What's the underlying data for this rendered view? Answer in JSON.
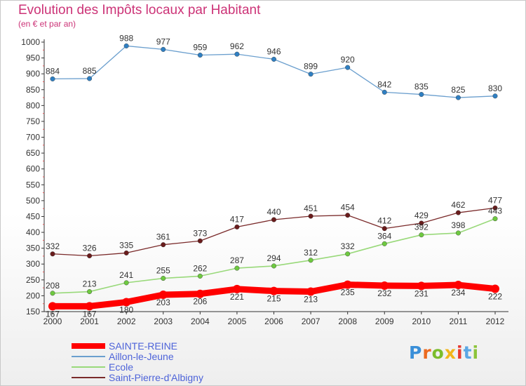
{
  "title": "Evolution des Impôts locaux par Habitant",
  "subtitle": "(en € et par an)",
  "logo": {
    "letters": [
      "P",
      "r",
      "o",
      "x",
      "i",
      "t",
      "i"
    ],
    "colors": [
      "#3a8fd8",
      "#ec6a1f",
      "#7bbd2c",
      "#f2b51b",
      "#e7382f",
      "#5ba7e4",
      "#8cc43a"
    ]
  },
  "chart_data": {
    "type": "line",
    "title": "Evolution des Impôts locaux par Habitant",
    "subtitle": "(en € et par an)",
    "x": [
      "2000",
      "2001",
      "2002",
      "2003",
      "2004",
      "2005",
      "2006",
      "2007",
      "2008",
      "2009",
      "2010",
      "2011",
      "2012"
    ],
    "ylim": [
      150,
      1000
    ],
    "yticks": [
      150,
      200,
      250,
      300,
      350,
      400,
      450,
      500,
      550,
      600,
      650,
      700,
      750,
      800,
      850,
      900,
      950,
      1000
    ],
    "ytick_labels": [
      "150",
      "200",
      "250",
      "300",
      "350",
      "400",
      "450",
      "500",
      "550",
      "600",
      "650",
      "700",
      "750",
      "800",
      "850",
      "900",
      "950",
      "1000"
    ],
    "grid": false,
    "legend_position": "bottom-left",
    "series": [
      {
        "name": "SAINTE-REINE",
        "values": [
          167,
          167,
          180,
          203,
          206,
          221,
          215,
          213,
          235,
          232,
          231,
          234,
          222
        ],
        "labels": [
          "167",
          "167",
          "180",
          "203",
          "206",
          "221",
          "215",
          "213",
          "235",
          "232",
          "231",
          "234",
          "222"
        ],
        "color": "#ff0000",
        "marker_color": "#ff0000",
        "width": 9,
        "label_below": true
      },
      {
        "name": "Aillon-le-Jeune",
        "values": [
          884,
          885,
          988,
          977,
          959,
          962,
          946,
          899,
          920,
          842,
          835,
          825,
          830
        ],
        "labels": [
          "884",
          "885",
          "988",
          "977",
          "959",
          "962",
          "946",
          "899",
          "920",
          "842",
          "835",
          "825",
          "830"
        ],
        "color": "#6b9fce",
        "marker_color": "#2f7fc2",
        "width": 1.3,
        "label_below": false
      },
      {
        "name": "Ecole",
        "values": [
          208,
          213,
          241,
          255,
          262,
          287,
          294,
          312,
          332,
          364,
          392,
          398,
          443
        ],
        "labels": [
          "208",
          "213",
          "241",
          "255",
          "262",
          "287",
          "294",
          "312",
          "332",
          "364",
          "392",
          "398",
          "443"
        ],
        "color": "#99d97a",
        "marker_color": "#6ec940",
        "width": 1.6,
        "label_below": false
      },
      {
        "name": "Saint-Pierre-d'Albigny",
        "values": [
          332,
          326,
          335,
          361,
          373,
          417,
          440,
          451,
          454,
          412,
          429,
          462,
          477
        ],
        "labels": [
          "332",
          "326",
          "335",
          "361",
          "373",
          "417",
          "440",
          "451",
          "454",
          "412",
          "429",
          "462",
          "477"
        ],
        "color": "#7a2a2a",
        "marker_color": "#6a1c1c",
        "width": 1.3,
        "label_below": false
      }
    ]
  }
}
